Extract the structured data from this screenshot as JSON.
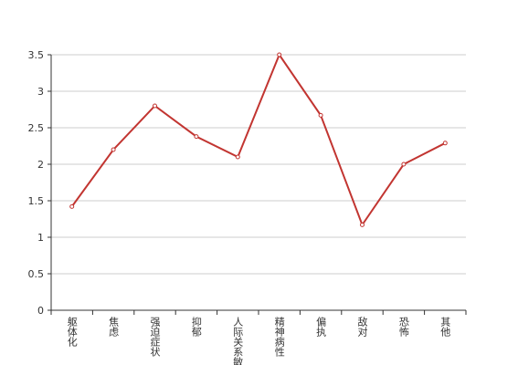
{
  "chart_data": {
    "type": "line",
    "categories": [
      "躯体化",
      "焦虑",
      "强迫症状",
      "抑郁",
      "人际关系敏感",
      "精神病性",
      "偏执",
      "敌对",
      "恐怖",
      "其他"
    ],
    "values": [
      1.42,
      2.2,
      2.8,
      2.38,
      2.1,
      3.5,
      2.67,
      1.17,
      2.0,
      2.29
    ],
    "color": "#c23531",
    "ylim": [
      0,
      3.5
    ],
    "yticks": [
      0,
      0.5,
      1,
      1.5,
      2,
      2.5,
      3,
      3.5
    ],
    "grid": true
  }
}
